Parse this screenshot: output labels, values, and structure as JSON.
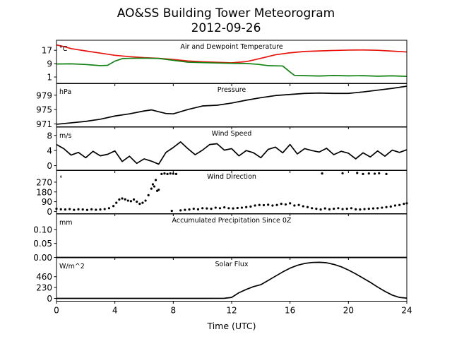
{
  "figure": {
    "title": "AO&SS Building Tower Meteorogram",
    "subtitle": "2012-09-26",
    "xlabel": "Time (UTC)",
    "xticks": [
      0,
      4,
      8,
      12,
      16,
      20,
      24
    ],
    "xlim": [
      0,
      24
    ]
  },
  "colors": {
    "temperature": "#e8120b",
    "dewpoint": "#128212",
    "line": "#000000"
  },
  "chart_data": [
    {
      "type": "line",
      "title": "Air and Dewpoint Temperature",
      "ylabel": "°C",
      "ylim": [
        -3,
        23
      ],
      "yticks": [
        1,
        9,
        17
      ],
      "series": [
        {
          "key": "temperature",
          "color": "#e8120b",
          "x": [
            0,
            0.5,
            1,
            2,
            3,
            4,
            5,
            6,
            7,
            8,
            9,
            10,
            11,
            12,
            13,
            14,
            15,
            16,
            17,
            18,
            19,
            20,
            21,
            22,
            23,
            24
          ],
          "y": [
            20.2,
            19.2,
            18.0,
            16.6,
            15.3,
            14.0,
            13.2,
            12.6,
            12.2,
            11.5,
            10.6,
            10.1,
            9.8,
            9.5,
            10.2,
            12.2,
            14.3,
            15.5,
            16.3,
            16.6,
            16.9,
            17.1,
            17.2,
            17.0,
            16.5,
            16.0
          ]
        },
        {
          "key": "dewpoint",
          "color": "#128212",
          "x": [
            0,
            1,
            2,
            3,
            3.5,
            4,
            4.5,
            5,
            6,
            7,
            8,
            9,
            10,
            11,
            12,
            13,
            13.8,
            14.5,
            15.5,
            16,
            16.3,
            17,
            18,
            19,
            20,
            21,
            22,
            23,
            24
          ],
          "y": [
            8.8,
            8.9,
            8.5,
            7.8,
            8.0,
            10.5,
            12.0,
            12.2,
            12.3,
            12.1,
            11.0,
            9.9,
            9.6,
            9.4,
            9.2,
            9.1,
            8.6,
            7.8,
            7.6,
            4.0,
            2.0,
            1.8,
            1.6,
            1.9,
            1.7,
            1.8,
            1.5,
            1.7,
            1.4
          ]
        }
      ]
    },
    {
      "type": "line",
      "title": "Pressure",
      "ylabel": "hPa",
      "ylim": [
        970.2,
        982.3
      ],
      "yticks": [
        971,
        975,
        979
      ],
      "series": [
        {
          "key": "pressure",
          "color": "#000000",
          "x": [
            0,
            1,
            2,
            3,
            4,
            5,
            6,
            6.5,
            7,
            7.5,
            8,
            9,
            10,
            11,
            12,
            13,
            14,
            15,
            16,
            17,
            18,
            19,
            20,
            21,
            22,
            23,
            24
          ],
          "y": [
            970.9,
            971.3,
            971.7,
            972.3,
            973.2,
            973.8,
            974.6,
            974.9,
            974.4,
            973.9,
            973.8,
            975.0,
            976.0,
            976.2,
            976.8,
            977.6,
            978.3,
            978.9,
            979.2,
            979.5,
            979.6,
            979.5,
            979.5,
            979.9,
            980.4,
            980.9,
            981.5
          ]
        }
      ]
    },
    {
      "type": "line",
      "title": "Wind Speed",
      "ylabel": "m/s",
      "ylim": [
        -1.3,
        10.2
      ],
      "yticks": [
        0,
        4,
        8
      ],
      "series": [
        {
          "key": "wind_speed",
          "color": "#000000",
          "x": [
            0,
            0.5,
            1,
            1.5,
            2,
            2.5,
            3,
            3.5,
            4,
            4.5,
            5,
            5.5,
            6,
            6.5,
            7,
            7.5,
            8,
            8.5,
            9,
            9.5,
            10,
            10.5,
            11,
            11.5,
            12,
            12.5,
            13,
            13.5,
            14,
            14.5,
            15,
            15.5,
            16,
            16.5,
            17,
            17.5,
            18,
            18.5,
            19,
            19.5,
            20,
            20.5,
            21,
            21.5,
            22,
            22.5,
            23,
            23.5,
            24
          ],
          "y": [
            5.6,
            4.5,
            2.8,
            3.5,
            2.1,
            3.8,
            2.6,
            3.0,
            3.9,
            1.1,
            2.5,
            0.6,
            1.8,
            1.2,
            0.4,
            3.5,
            4.8,
            6.3,
            4.5,
            2.9,
            4.1,
            5.6,
            5.8,
            4.1,
            4.5,
            2.6,
            4.0,
            3.4,
            2.1,
            4.3,
            4.9,
            3.4,
            5.6,
            3.1,
            4.5,
            4.0,
            3.6,
            4.6,
            2.9,
            3.8,
            3.3,
            1.8,
            3.4,
            2.3,
            3.9,
            2.5,
            4.1,
            3.5,
            4.2
          ]
        }
      ]
    },
    {
      "type": "scatter",
      "title": "Wind Direction",
      "ylabel": "°",
      "ylim": [
        -20,
        380
      ],
      "yticks": [
        0,
        90,
        180,
        270
      ],
      "series": [
        {
          "key": "wind_direction",
          "color": "#000000",
          "x": [
            0,
            0.3,
            0.6,
            0.9,
            1.2,
            1.5,
            1.8,
            2.1,
            2.4,
            2.7,
            3.0,
            3.3,
            3.6,
            3.9,
            4.1,
            4.3,
            4.5,
            4.7,
            4.9,
            5.1,
            5.3,
            5.5,
            5.7,
            5.9,
            6.1,
            6.3,
            6.5,
            6.6,
            6.7,
            6.8,
            6.9,
            7.0,
            7.2,
            7.4,
            7.6,
            7.8,
            8.0,
            8.2,
            7.9,
            8.5,
            8.8,
            9.1,
            9.4,
            9.7,
            10.0,
            10.3,
            10.6,
            10.9,
            11.2,
            11.5,
            11.8,
            12.1,
            12.4,
            12.7,
            13.0,
            13.3,
            13.6,
            13.9,
            14.2,
            14.5,
            14.8,
            15.1,
            15.4,
            15.7,
            16.0,
            16.3,
            16.6,
            16.9,
            17.2,
            17.5,
            17.8,
            18.1,
            18.4,
            18.7,
            19.0,
            19.3,
            19.6,
            19.9,
            20.2,
            20.5,
            20.8,
            21.1,
            21.4,
            21.7,
            22.0,
            22.3,
            22.6,
            22.9,
            23.2,
            23.5,
            23.8,
            24.0,
            18.2,
            19.6,
            20.6,
            21.0,
            21.4,
            21.8,
            22.1,
            22.6
          ],
          "y": [
            25,
            20,
            18,
            22,
            15,
            20,
            18,
            14,
            20,
            16,
            18,
            22,
            30,
            50,
            80,
            110,
            120,
            112,
            100,
            95,
            110,
            90,
            70,
            80,
            100,
            150,
            210,
            250,
            230,
            290,
            190,
            200,
            345,
            350,
            345,
            350,
            348,
            345,
            5,
            10,
            15,
            18,
            25,
            20,
            30,
            28,
            25,
            35,
            30,
            38,
            30,
            28,
            32,
            35,
            40,
            45,
            55,
            60,
            58,
            62,
            55,
            60,
            70,
            65,
            75,
            55,
            60,
            48,
            40,
            30,
            25,
            18,
            28,
            20,
            25,
            30,
            22,
            25,
            30,
            20,
            18,
            22,
            25,
            28,
            30,
            35,
            40,
            45,
            55,
            60,
            70,
            75,
            350,
            352,
            355,
            345,
            350,
            348,
            352,
            345
          ]
        }
      ]
    },
    {
      "type": "line",
      "title": "Accumulated Precipitation Since 0Z",
      "ylabel": "mm",
      "ylim": [
        0,
        0.155
      ],
      "yticks": [
        0.0,
        0.05,
        0.1
      ],
      "ytick_labels": [
        "0.00",
        "0.05",
        "0.10"
      ],
      "series": [
        {
          "key": "precipitation",
          "color": "#000000",
          "x": [
            0,
            24
          ],
          "y": [
            0,
            0
          ]
        }
      ]
    },
    {
      "type": "line",
      "title": "Solar Flux",
      "ylabel": "W/m^2",
      "ylim": [
        -60,
        860
      ],
      "yticks": [
        0,
        230,
        460
      ],
      "series": [
        {
          "key": "solar_flux",
          "color": "#000000",
          "x": [
            0,
            2,
            4,
            6,
            8,
            10,
            11.5,
            12.0,
            12.5,
            13.0,
            13.5,
            14.0,
            14.5,
            15,
            15.5,
            16,
            16.5,
            17,
            17.5,
            18,
            18.5,
            19,
            19.5,
            20,
            20.5,
            21,
            21.5,
            22,
            22.5,
            23,
            23.5,
            24
          ],
          "y": [
            0,
            0,
            0,
            0,
            0,
            0,
            2,
            20,
            120,
            190,
            250,
            290,
            380,
            470,
            560,
            640,
            700,
            740,
            760,
            765,
            755,
            720,
            670,
            600,
            520,
            430,
            340,
            240,
            150,
            70,
            20,
            5
          ]
        }
      ]
    }
  ]
}
